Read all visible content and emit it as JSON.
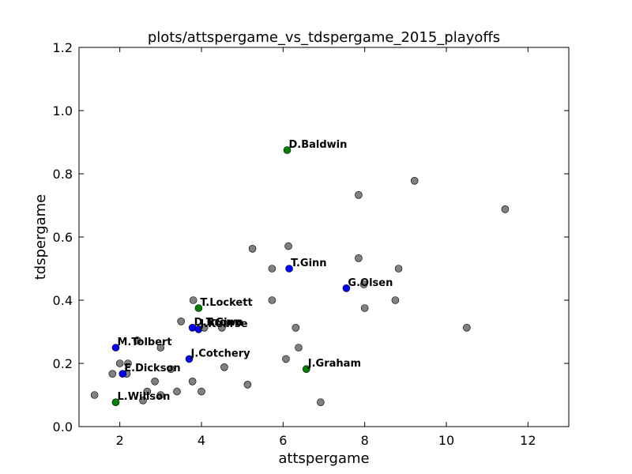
{
  "chart_data": {
    "type": "scatter",
    "title": "plots/attspergame_vs_tdspergame_2015_playoffs",
    "xlabel": "attspergame",
    "ylabel": "tdspergame",
    "xlim": [
      1,
      13
    ],
    "ylim": [
      0.0,
      1.2
    ],
    "xticks": [
      2,
      4,
      6,
      8,
      10,
      12
    ],
    "yticks": [
      0.0,
      0.2,
      0.4,
      0.6,
      0.8,
      1.0,
      1.2
    ],
    "xtick_labels": [
      "2",
      "4",
      "6",
      "8",
      "10",
      "12"
    ],
    "ytick_labels": [
      "0.0",
      "0.2",
      "0.4",
      "0.6",
      "0.8",
      "1.0",
      "1.2"
    ],
    "grid": false,
    "colors": {
      "gray": "#808080",
      "blue": "#0000ff",
      "green": "#008000"
    },
    "points": [
      {
        "x": 1.38,
        "y": 0.1,
        "color": "gray"
      },
      {
        "x": 1.82,
        "y": 0.167,
        "color": "gray"
      },
      {
        "x": 2.0,
        "y": 0.2,
        "color": "gray"
      },
      {
        "x": 2.2,
        "y": 0.2,
        "color": "gray"
      },
      {
        "x": 2.17,
        "y": 0.167,
        "color": "gray"
      },
      {
        "x": 2.43,
        "y": 0.273,
        "color": "gray"
      },
      {
        "x": 2.57,
        "y": 0.083,
        "color": "gray"
      },
      {
        "x": 2.67,
        "y": 0.111,
        "color": "gray"
      },
      {
        "x": 2.86,
        "y": 0.143,
        "color": "gray"
      },
      {
        "x": 3.0,
        "y": 0.1,
        "color": "gray"
      },
      {
        "x": 3.0,
        "y": 0.25,
        "color": "gray"
      },
      {
        "x": 3.25,
        "y": 0.182,
        "color": "gray"
      },
      {
        "x": 3.4,
        "y": 0.111,
        "color": "gray"
      },
      {
        "x": 3.5,
        "y": 0.333,
        "color": "gray"
      },
      {
        "x": 3.78,
        "y": 0.143,
        "color": "gray"
      },
      {
        "x": 3.8,
        "y": 0.4,
        "color": "gray"
      },
      {
        "x": 4.0,
        "y": 0.111,
        "color": "gray"
      },
      {
        "x": 4.5,
        "y": 0.313,
        "color": "gray"
      },
      {
        "x": 4.56,
        "y": 0.188,
        "color": "gray"
      },
      {
        "x": 5.13,
        "y": 0.133,
        "color": "gray"
      },
      {
        "x": 5.25,
        "y": 0.563,
        "color": "gray"
      },
      {
        "x": 5.73,
        "y": 0.5,
        "color": "gray"
      },
      {
        "x": 5.73,
        "y": 0.4,
        "color": "gray"
      },
      {
        "x": 6.07,
        "y": 0.214,
        "color": "gray"
      },
      {
        "x": 6.13,
        "y": 0.571,
        "color": "gray"
      },
      {
        "x": 6.31,
        "y": 0.313,
        "color": "gray"
      },
      {
        "x": 6.38,
        "y": 0.25,
        "color": "gray"
      },
      {
        "x": 6.92,
        "y": 0.077,
        "color": "gray"
      },
      {
        "x": 7.85,
        "y": 0.733,
        "color": "gray"
      },
      {
        "x": 7.85,
        "y": 0.533,
        "color": "gray"
      },
      {
        "x": 7.98,
        "y": 0.45,
        "color": "gray"
      },
      {
        "x": 8.0,
        "y": 0.375,
        "color": "gray"
      },
      {
        "x": 8.75,
        "y": 0.4,
        "color": "gray"
      },
      {
        "x": 8.83,
        "y": 0.5,
        "color": "gray"
      },
      {
        "x": 9.22,
        "y": 0.778,
        "color": "gray"
      },
      {
        "x": 10.5,
        "y": 0.313,
        "color": "gray"
      },
      {
        "x": 11.44,
        "y": 0.688,
        "color": "gray"
      },
      {
        "x": 6.1,
        "y": 0.875,
        "color": "green",
        "label": "D.Baldwin"
      },
      {
        "x": 6.15,
        "y": 0.5,
        "color": "blue",
        "label": "T.Ginn"
      },
      {
        "x": 7.55,
        "y": 0.438,
        "color": "blue",
        "label": "G.Olsen"
      },
      {
        "x": 3.93,
        "y": 0.375,
        "color": "green",
        "label": "T.Lockett"
      },
      {
        "x": 3.78,
        "y": 0.313,
        "color": "blue",
        "label": "D.Brown"
      },
      {
        "x": 3.93,
        "y": 0.308,
        "color": "blue",
        "label": "J.Kearse"
      },
      {
        "x": 4.07,
        "y": 0.313,
        "color": "gray",
        "label": "T.Ginn"
      },
      {
        "x": 1.9,
        "y": 0.25,
        "color": "blue",
        "label": "M.Tolbert"
      },
      {
        "x": 3.7,
        "y": 0.214,
        "color": "blue",
        "label": "J.Cotchery"
      },
      {
        "x": 6.57,
        "y": 0.182,
        "color": "green",
        "label": "J.Graham"
      },
      {
        "x": 2.07,
        "y": 0.167,
        "color": "blue",
        "label": "E.Dickson"
      },
      {
        "x": 1.9,
        "y": 0.077,
        "color": "green",
        "label": "L.Willson"
      }
    ]
  }
}
